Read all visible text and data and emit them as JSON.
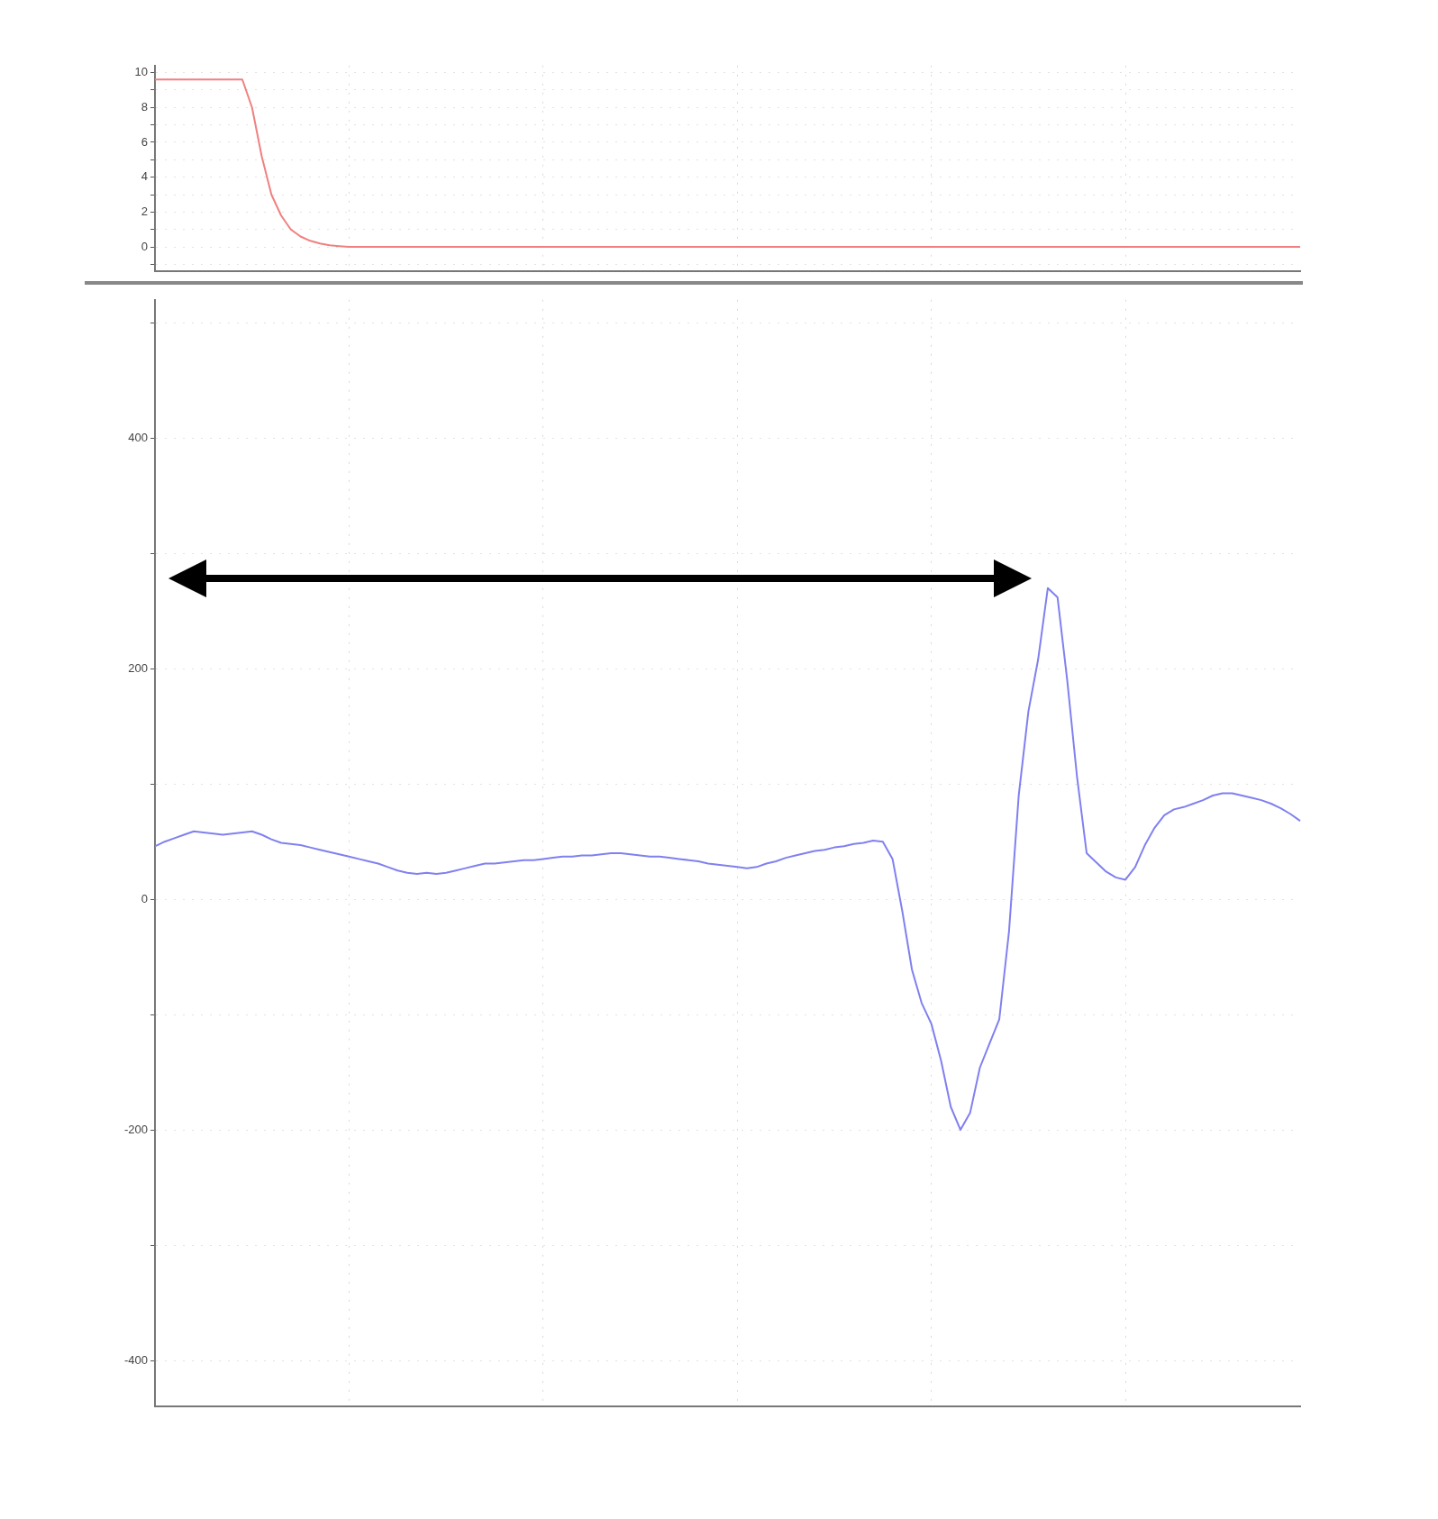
{
  "chart_data": [
    {
      "type": "line",
      "categories": [
        null,
        null,
        null,
        null,
        null,
        null,
        null,
        null,
        null,
        null,
        null,
        null,
        null,
        null,
        null,
        null,
        null,
        null,
        null,
        null,
        null,
        null,
        null,
        null,
        null,
        null,
        null,
        null,
        null,
        null,
        null,
        null,
        null,
        null,
        null,
        null,
        null,
        null,
        null,
        null,
        null,
        null,
        null,
        null,
        null,
        null,
        null,
        null,
        null,
        null,
        null,
        null,
        null,
        null,
        null,
        null,
        null,
        null,
        null,
        null,
        null,
        null,
        null,
        null,
        null,
        null,
        null,
        null,
        null,
        null,
        null,
        null,
        null,
        null,
        null,
        null,
        null,
        null,
        null,
        null,
        null,
        null,
        null,
        null,
        null,
        null,
        null,
        null,
        null,
        null,
        null,
        null,
        null,
        null,
        null,
        null,
        null,
        null,
        null,
        null,
        null,
        null,
        null,
        null,
        null,
        null,
        null,
        null,
        null,
        null,
        null,
        null,
        null,
        null,
        null,
        null,
        null,
        null,
        null
      ],
      "series": [
        {
          "color": "#f08080",
          "values": [
            9.6,
            9.6,
            9.6,
            9.6,
            9.6,
            9.6,
            9.6,
            9.6,
            9.6,
            9.6,
            8.0,
            5.2,
            3.0,
            1.8,
            1.0,
            0.6,
            0.35,
            0.2,
            0.1,
            0.05,
            0,
            0,
            0,
            0,
            0,
            0,
            0,
            0,
            0,
            0,
            0,
            0,
            0,
            0,
            0,
            0,
            0,
            0,
            0,
            0,
            0,
            0,
            0,
            0,
            0,
            0,
            0,
            0,
            0,
            0,
            0,
            0,
            0,
            0,
            0,
            0,
            0,
            0,
            0,
            0,
            0,
            0,
            0,
            0,
            0,
            0,
            0,
            0,
            0,
            0,
            0,
            0,
            0,
            0,
            0,
            0,
            0,
            0,
            0,
            0,
            0,
            0,
            0,
            0,
            0,
            0,
            0,
            0,
            0,
            0,
            0,
            0,
            0,
            0,
            0,
            0,
            0,
            0,
            0,
            0,
            0,
            0,
            0,
            0,
            0,
            0,
            0,
            0,
            0,
            0,
            0,
            0,
            0,
            0,
            0,
            0,
            0,
            0,
            0
          ]
        }
      ],
      "ylim": [
        -1.4,
        10.4
      ],
      "yticks": [
        {
          "value": -1,
          "label": null
        },
        0,
        {
          "value": 1,
          "label": null
        },
        2,
        {
          "value": 3,
          "label": null
        },
        4,
        {
          "value": 5,
          "label": null
        },
        6,
        {
          "value": 7,
          "label": null
        },
        8,
        {
          "value": 9,
          "label": null
        },
        10
      ],
      "tick_labels": "y",
      "grid": true,
      "marker": "none",
      "line_style": "solid",
      "legend": false
    },
    {
      "type": "line",
      "categories": [
        null,
        null,
        null,
        null,
        null,
        null,
        null,
        null,
        null,
        null,
        null,
        null,
        null,
        null,
        null,
        null,
        null,
        null,
        null,
        null,
        null,
        null,
        null,
        null,
        null,
        null,
        null,
        null,
        null,
        null,
        null,
        null,
        null,
        null,
        null,
        null,
        null,
        null,
        null,
        null,
        null,
        null,
        null,
        null,
        null,
        null,
        null,
        null,
        null,
        null,
        null,
        null,
        null,
        null,
        null,
        null,
        null,
        null,
        null,
        null,
        null,
        null,
        null,
        null,
        null,
        null,
        null,
        null,
        null,
        null,
        null,
        null,
        null,
        null,
        null,
        null,
        null,
        null,
        null,
        null,
        null,
        null,
        null,
        null,
        null,
        null,
        null,
        null,
        null,
        null,
        null,
        null,
        null,
        null,
        null,
        null,
        null,
        null,
        null,
        null,
        null,
        null,
        null,
        null,
        null,
        null,
        null,
        null,
        null,
        null,
        null,
        null,
        null,
        null,
        null,
        null,
        null,
        null,
        null
      ],
      "series": [
        {
          "color": "#8080f0",
          "values": [
            46,
            50,
            53,
            56,
            59,
            58,
            57,
            56,
            57,
            58,
            59,
            56,
            52,
            49,
            48,
            47,
            45,
            43,
            41,
            39,
            37,
            35,
            33,
            31,
            28,
            25,
            23,
            22,
            23,
            22,
            23,
            25,
            27,
            29,
            31,
            31,
            32,
            33,
            34,
            34,
            35,
            36,
            37,
            37,
            38,
            38,
            39,
            40,
            40,
            39,
            38,
            37,
            37,
            36,
            35,
            34,
            33,
            31,
            30,
            29,
            28,
            27,
            28,
            31,
            33,
            36,
            38,
            40,
            42,
            43,
            45,
            46,
            48,
            49,
            51,
            50,
            35,
            -10,
            -61,
            -90,
            -108,
            -140,
            -180,
            -200,
            -185,
            -146,
            -125,
            -104,
            -28,
            90,
            163,
            208,
            270,
            262,
            190,
            107,
            40,
            32,
            24,
            19,
            17,
            28,
            47,
            62,
            73,
            78,
            80,
            83,
            86,
            90,
            92,
            92,
            90,
            88,
            86,
            83,
            79,
            74,
            68
          ]
        }
      ],
      "ylim": [
        -440,
        520
      ],
      "yticks": [
        -400,
        {
          "value": -300,
          "label": null
        },
        -200,
        {
          "value": -100,
          "label": null
        },
        0,
        {
          "value": 100,
          "label": null
        },
        200,
        {
          "value": 300,
          "label": null
        },
        400,
        {
          "value": 500,
          "label": null
        }
      ],
      "tick_labels": "y",
      "grid": true,
      "marker": "none",
      "line_style": "solid",
      "legend": false
    }
  ]
}
